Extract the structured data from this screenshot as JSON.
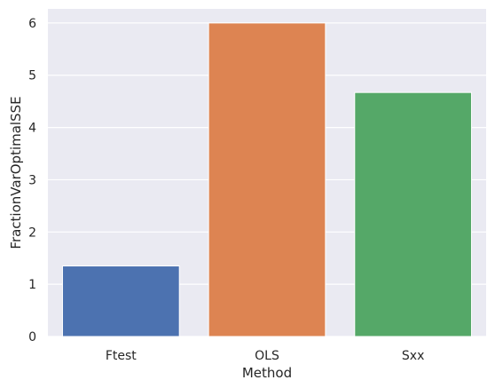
{
  "chart_data": {
    "type": "bar",
    "title": "",
    "xlabel": "Method",
    "ylabel": "FractionVarOptimalSSE",
    "categories": [
      "Ftest",
      "OLS",
      "Sxx"
    ],
    "values": [
      1.35,
      6.0,
      4.67
    ],
    "colors": [
      "#4c72b0",
      "#dd8452",
      "#55a868"
    ],
    "ylim": [
      0,
      6.27
    ],
    "yticks": [
      0,
      1,
      2,
      3,
      4,
      5,
      6
    ],
    "grid": true,
    "background": "#eaeaf2"
  }
}
